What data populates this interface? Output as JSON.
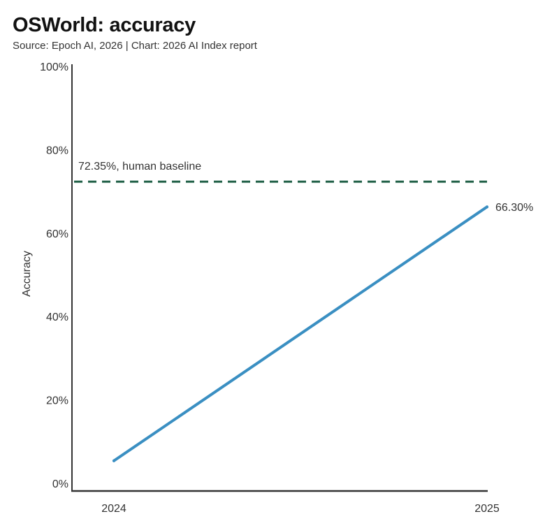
{
  "chart_data": {
    "type": "line",
    "title": "OSWorld: accuracy",
    "subtitle": "Source: Epoch AI, 2026 | Chart: 2026 AI Index report",
    "xlabel": "",
    "ylabel": "Accuracy",
    "x": [
      "2024",
      "2025"
    ],
    "series": [
      {
        "name": "Accuracy",
        "values": [
          5.4,
          66.3
        ],
        "color": "#3a8fc2"
      }
    ],
    "end_label": "66.30%",
    "ylim": [
      0,
      100
    ],
    "yticks": [
      0,
      20,
      40,
      60,
      80,
      100
    ],
    "ytick_labels": [
      "0%",
      "20%",
      "40%",
      "60%",
      "80%",
      "100%"
    ],
    "reference_line": {
      "value": 72.35,
      "label": "72.35%, human baseline",
      "color": "#1e5e45"
    },
    "grid": false
  }
}
